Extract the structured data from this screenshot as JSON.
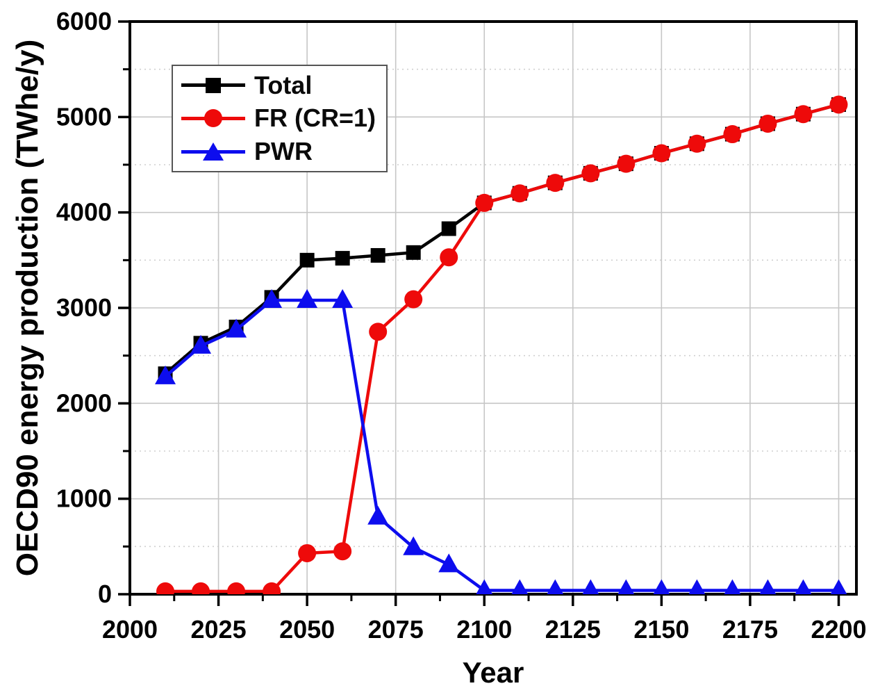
{
  "chart_data": {
    "type": "line",
    "title": "",
    "xlabel": "Year",
    "ylabel": "OECD90 energy production (TWhe/y)",
    "x": [
      2010,
      2020,
      2030,
      2040,
      2050,
      2060,
      2070,
      2080,
      2090,
      2100,
      2110,
      2120,
      2130,
      2140,
      2150,
      2160,
      2170,
      2180,
      2190,
      2200
    ],
    "series": [
      {
        "name": "Total",
        "color": "#000000",
        "marker": "square",
        "values": [
          2310,
          2630,
          2800,
          3110,
          3500,
          3520,
          3550,
          3580,
          3830,
          4100,
          4200,
          4310,
          4410,
          4510,
          4620,
          4720,
          4820,
          4930,
          5030,
          5130
        ]
      },
      {
        "name": "FR (CR=1)",
        "color": "#ee0a0a",
        "marker": "circle",
        "values": [
          30,
          30,
          30,
          30,
          430,
          450,
          2750,
          3090,
          3530,
          4100,
          4200,
          4310,
          4410,
          4510,
          4620,
          4720,
          4820,
          4930,
          5030,
          5130
        ]
      },
      {
        "name": "PWR",
        "color": "#0d0dee",
        "marker": "triangle-up",
        "values": [
          2280,
          2600,
          2770,
          3080,
          3080,
          3080,
          810,
          490,
          310,
          40,
          40,
          40,
          40,
          40,
          40,
          40,
          40,
          40,
          40,
          40
        ]
      }
    ],
    "xlim": [
      2000,
      2205
    ],
    "ylim": [
      0,
      6000
    ],
    "x_major_ticks": [
      2000,
      2025,
      2050,
      2075,
      2100,
      2125,
      2150,
      2175,
      2200
    ],
    "x_minor_step": 12.5,
    "y_major_ticks": [
      0,
      1000,
      2000,
      3000,
      4000,
      5000,
      6000
    ],
    "y_minor_step": 500,
    "grid": {
      "x_major": "solid",
      "y_major": "solid",
      "y_minor": "dotted",
      "major_color": "#c6c6c6",
      "minor_color": "#cfcfcf"
    },
    "legend": {
      "position": "top-left",
      "entries": [
        "Total",
        "FR (CR=1)",
        "PWR"
      ]
    },
    "frame_color": "#000000"
  }
}
